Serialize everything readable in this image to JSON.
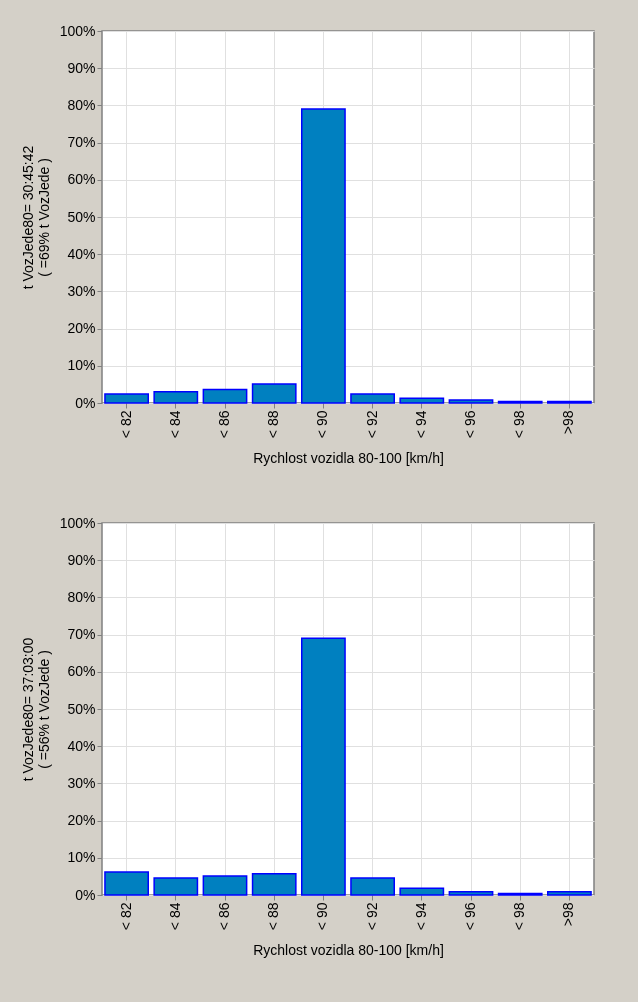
{
  "chart_data": [
    {
      "type": "bar",
      "xlabel": "Rychlost vozidla 80-100 [km/h]",
      "ylabel": "t VozJede80=  30:45:42\n( =69% t VozJede )",
      "categories": [
        "< 82",
        "< 84",
        "< 86",
        "< 88",
        "< 90",
        "< 92",
        "< 94",
        "< 96",
        "< 98",
        ">98"
      ],
      "values": [
        2.4,
        3.0,
        3.6,
        5.1,
        79,
        2.4,
        1.3,
        0.8,
        0.4,
        0.4
      ],
      "color": "#0080c0",
      "ylim": [
        0,
        100
      ],
      "yticks": [
        {
          "value": 0,
          "label": "0%"
        },
        {
          "value": 10,
          "label": "10%"
        },
        {
          "value": 20,
          "label": "20%"
        },
        {
          "value": 30,
          "label": "30%"
        },
        {
          "value": 40,
          "label": "40%"
        },
        {
          "value": 50,
          "label": "50%"
        },
        {
          "value": 60,
          "label": "60%"
        },
        {
          "value": 70,
          "label": "70%"
        },
        {
          "value": 80,
          "label": "80%"
        },
        {
          "value": 90,
          "label": "90%"
        },
        {
          "value": 100,
          "label": "100%"
        }
      ],
      "grid": true
    },
    {
      "type": "bar",
      "xlabel": "Rychlost vozidla 80-100 [km/h]",
      "ylabel": "t VozJede80=  37:03:00\n( =56% t VozJede )",
      "categories": [
        "< 82",
        "< 84",
        "< 86",
        "< 88",
        "< 90",
        "< 92",
        "< 94",
        "< 96",
        "< 98",
        ">98"
      ],
      "values": [
        6.2,
        4.6,
        5.1,
        5.7,
        69,
        4.6,
        1.8,
        0.9,
        0.4,
        0.9
      ],
      "color": "#0080c0",
      "ylim": [
        0,
        100
      ],
      "yticks": [
        {
          "value": 0,
          "label": "0%"
        },
        {
          "value": 10,
          "label": "10%"
        },
        {
          "value": 20,
          "label": "20%"
        },
        {
          "value": 30,
          "label": "30%"
        },
        {
          "value": 40,
          "label": "40%"
        },
        {
          "value": 50,
          "label": "50%"
        },
        {
          "value": 60,
          "label": "60%"
        },
        {
          "value": 70,
          "label": "70%"
        },
        {
          "value": 80,
          "label": "80%"
        },
        {
          "value": 90,
          "label": "90%"
        },
        {
          "value": 100,
          "label": "100%"
        }
      ],
      "grid": true
    }
  ]
}
